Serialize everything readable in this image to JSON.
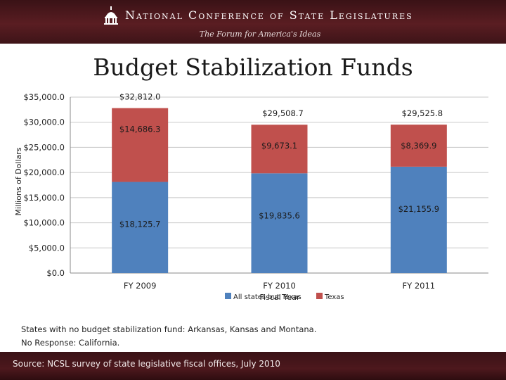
{
  "header": {
    "organization": "National Conference of State Legislatures",
    "tagline": "The Forum for America's Ideas",
    "logo_icon": "capitol-dome-icon"
  },
  "chart_data": {
    "type": "bar",
    "stacked": true,
    "title": "Budget Stabilization Funds",
    "ylabel": "Millions of Dollars",
    "xlabel": "Fiscal Year",
    "categories": [
      "FY 2009",
      "FY 2010",
      "FY 2011"
    ],
    "ylim": [
      0,
      35000
    ],
    "yticks": [
      "$0.0",
      "$5,000.0",
      "$10,000.0",
      "$15,000.0",
      "$20,000.0",
      "$25,000.0",
      "$30,000.0",
      "$35,000.0"
    ],
    "grid": true,
    "series": [
      {
        "name": "All states but Texas",
        "values": [
          18125.7,
          19835.6,
          21155.9
        ],
        "labels": [
          "$18,125.7",
          "$19,835.6",
          "$21,155.9"
        ],
        "color": "#4f81bd"
      },
      {
        "name": "Texas",
        "values": [
          14686.3,
          9673.1,
          8369.9
        ],
        "labels": [
          "$14,686.3",
          "$9,673.1",
          "$8,369.9"
        ],
        "color": "#c0504d"
      }
    ],
    "totals": [
      32812.0,
      29508.7,
      29525.8
    ],
    "total_labels": [
      "$32,812.0",
      "$29,508.7",
      "$29,525.8"
    ],
    "legend_position": "bottom"
  },
  "notes": [
    "States with no budget stabilization fund: Arkansas, Kansas and Montana.",
    "No Response: California."
  ],
  "footer": {
    "source": "Source: NCSL survey of state legislative fiscal offices, July 2010"
  }
}
